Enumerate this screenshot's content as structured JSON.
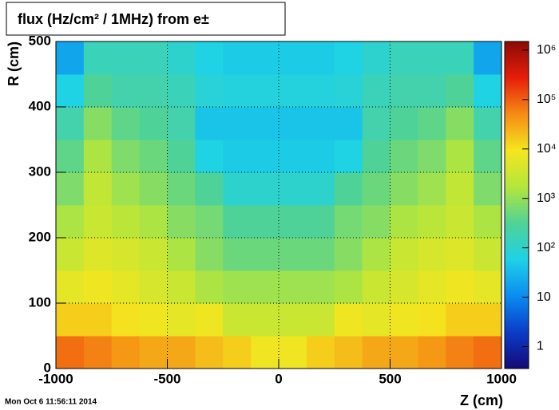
{
  "chart_data": {
    "type": "heatmap",
    "title": "flux (Hz/cm² / 1MHz) from e±",
    "x_label": "Z (cm)",
    "y_label": "R (cm)",
    "timestamp": "Mon Oct  6 11:56:11 2014",
    "xlim": [
      -1000,
      1000
    ],
    "ylim": [
      0,
      500
    ],
    "xticks": [
      -1000,
      -500,
      0,
      500,
      1000
    ],
    "yticks": [
      0,
      100,
      200,
      300,
      400,
      500
    ],
    "grid": true,
    "log_z": true,
    "zlim": [
      0.36,
      1500000
    ],
    "zticks": [
      1,
      10,
      {
        "value": 100,
        "label": "10²"
      },
      {
        "value": 1000,
        "label": "10³"
      },
      {
        "value": 10000,
        "label": "10⁴"
      },
      {
        "value": 100000,
        "label": "10⁵"
      },
      {
        "value": 1000000,
        "label": "10⁶"
      }
    ],
    "colormap": [
      "#140a78",
      "#0a3cc8",
      "#0a8cf0",
      "#1ed2e6",
      "#50d296",
      "#b4e63c",
      "#f5e61e",
      "#f58c14",
      "#e61e0a",
      "#8c0a05"
    ],
    "xbins": [
      -1000,
      -875,
      -750,
      -625,
      -500,
      -375,
      -250,
      -125,
      0,
      125,
      250,
      375,
      500,
      625,
      750,
      875,
      1000
    ],
    "ybins": [
      0,
      50,
      100,
      150,
      200,
      250,
      300,
      350,
      400,
      450,
      500
    ],
    "z": [
      [
        80000,
        60000,
        40000,
        30000,
        30000,
        20000,
        15000,
        8000,
        8000,
        15000,
        20000,
        30000,
        30000,
        40000,
        60000,
        80000
      ],
      [
        15000,
        15000,
        10000,
        8000,
        6000,
        8000,
        3000,
        3000,
        3000,
        3000,
        8000,
        6000,
        8000,
        10000,
        15000,
        15000
      ],
      [
        6000,
        8000,
        6000,
        4000,
        3000,
        1500,
        1200,
        1200,
        1200,
        1200,
        1500,
        3000,
        4000,
        6000,
        8000,
        6000
      ],
      [
        3000,
        5000,
        4000,
        3000,
        1500,
        800,
        500,
        500,
        500,
        500,
        800,
        1500,
        3000,
        4000,
        5000,
        3000
      ],
      [
        1500,
        3000,
        2000,
        1500,
        800,
        600,
        300,
        300,
        300,
        300,
        600,
        800,
        1500,
        2000,
        3000,
        1500
      ],
      [
        700,
        2500,
        1200,
        800,
        500,
        300,
        100,
        100,
        100,
        100,
        300,
        500,
        800,
        1200,
        2500,
        700
      ],
      [
        400,
        1500,
        700,
        500,
        300,
        60,
        50,
        50,
        50,
        50,
        60,
        300,
        500,
        700,
        1500,
        400
      ],
      [
        200,
        800,
        400,
        300,
        200,
        40,
        40,
        40,
        40,
        40,
        40,
        200,
        300,
        400,
        800,
        200
      ],
      [
        60,
        300,
        200,
        200,
        150,
        80,
        70,
        70,
        70,
        70,
        80,
        150,
        200,
        200,
        300,
        60
      ],
      [
        20,
        150,
        150,
        150,
        100,
        60,
        50,
        50,
        50,
        50,
        60,
        100,
        150,
        150,
        150,
        20
      ]
    ]
  }
}
